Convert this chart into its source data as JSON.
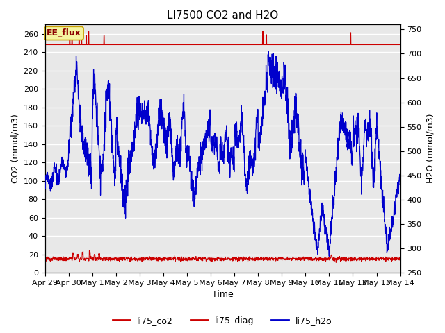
{
  "title": "LI7500 CO2 and H2O",
  "xlabel": "Time",
  "ylabel_left": "CO2 (mmol/m3)",
  "ylabel_right": "H2O (mmol/m3)",
  "ylim_left": [
    0,
    270
  ],
  "ylim_right": [
    250,
    760
  ],
  "yticks_left": [
    0,
    20,
    40,
    60,
    80,
    100,
    120,
    140,
    160,
    180,
    200,
    220,
    240,
    260
  ],
  "yticks_right": [
    250,
    300,
    350,
    400,
    450,
    500,
    550,
    600,
    650,
    700,
    750
  ],
  "xtick_labels": [
    "Apr 29",
    "Apr 30",
    "May 1",
    "May 2",
    "May 3",
    "May 4",
    "May 5",
    "May 6",
    "May 7",
    "May 8",
    "May 9",
    "May 10",
    "May 11",
    "May 12",
    "May 13",
    "May 14"
  ],
  "annotation_text": "EE_flux",
  "annotation_bg": "#f5f5a0",
  "annotation_border": "#c8a000",
  "bg_color": "#e8e8e8",
  "grid_color": "#ffffff",
  "co2_color": "#cc0000",
  "diag_color": "#cc0000",
  "h2o_color": "#0000cc",
  "title_fontsize": 11,
  "label_fontsize": 9,
  "tick_fontsize": 8,
  "legend_fontsize": 9
}
